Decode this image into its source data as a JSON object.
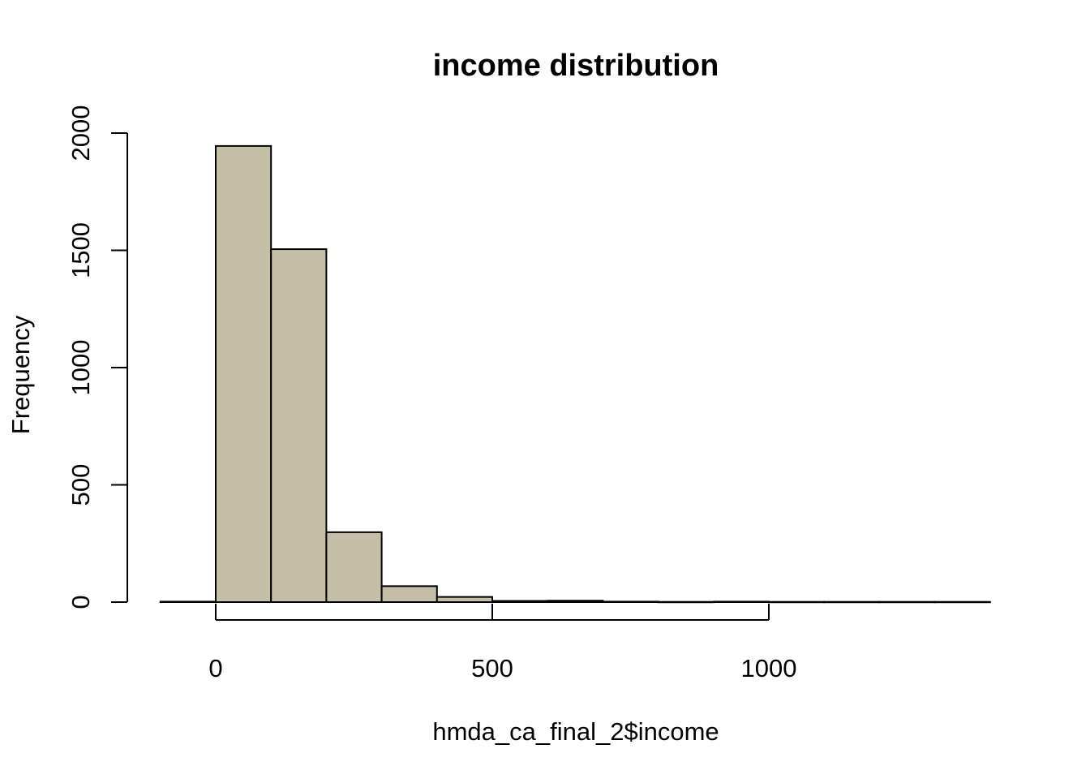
{
  "chart_data": {
    "type": "bar",
    "title": "income distribution",
    "xlabel": "hmda_ca_final_2$income",
    "ylabel": "Frequency",
    "bin_edges": [
      -100,
      0,
      100,
      200,
      300,
      400,
      500,
      600,
      700,
      800,
      900,
      1000,
      1100,
      1200,
      1300,
      1400
    ],
    "values": [
      2,
      1945,
      1505,
      298,
      68,
      22,
      5,
      6,
      2,
      1,
      2,
      1,
      1,
      1,
      1
    ],
    "xlim": [
      -100,
      1400
    ],
    "ylim": [
      0,
      2000
    ],
    "x_ticks": [
      0,
      500,
      1000
    ],
    "y_ticks": [
      0,
      500,
      1000,
      1500,
      2000
    ],
    "bar_color": "#c4bfa6",
    "grid": false,
    "legend": "none"
  }
}
